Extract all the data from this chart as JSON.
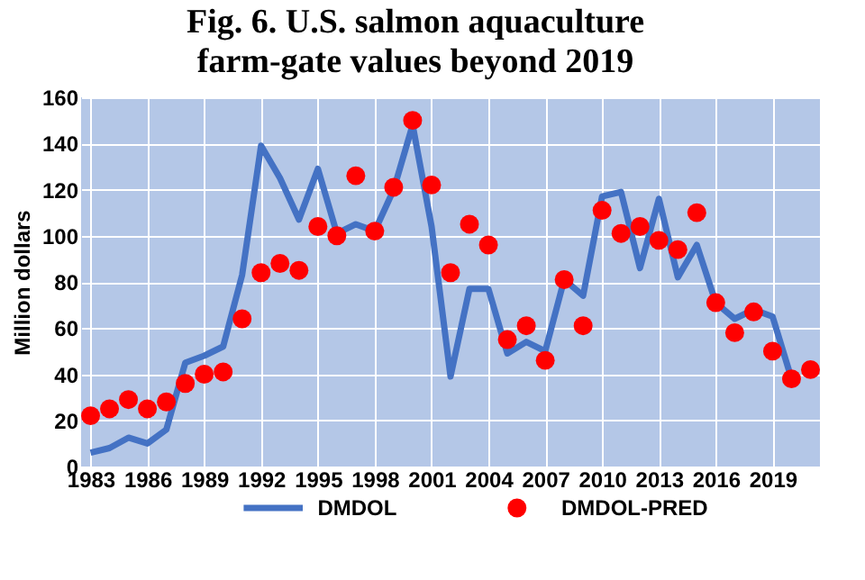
{
  "chart_data": {
    "type": "line",
    "title": "Fig. 6. U.S. salmon aquaculture farm-gate values beyond 2019",
    "ylabel": "Million dollars",
    "categories": [
      "1983",
      null,
      null,
      "1986",
      null,
      null,
      "1989",
      null,
      null,
      "1992",
      null,
      null,
      "1995",
      null,
      null,
      "1998",
      null,
      null,
      "2001",
      null,
      null,
      "2004",
      null,
      null,
      "2007",
      null,
      null,
      "2010",
      null,
      null,
      "2013",
      null,
      null,
      "2016",
      null,
      null,
      "2019",
      null,
      null
    ],
    "series": [
      {
        "name": "DMDOL",
        "type": "line",
        "color": "#4472c4",
        "values": [
          6,
          8,
          12.5,
          10,
          16,
          45,
          48,
          52,
          83,
          139,
          125,
          107,
          129,
          101,
          105,
          102,
          120,
          148,
          104,
          39,
          77,
          77,
          49,
          54,
          50,
          81,
          74,
          117,
          119,
          86,
          116,
          82,
          96,
          71,
          64,
          68,
          65,
          38,
          null
        ]
      },
      {
        "name": "DMDOL-PRED",
        "type": "scatter",
        "marker": "circle",
        "color": "#ff0000",
        "values": [
          22,
          25,
          29,
          25,
          28,
          36,
          40,
          41,
          64,
          84,
          88,
          85,
          104,
          100,
          126,
          102,
          121,
          150,
          122,
          84,
          105,
          96,
          55,
          61,
          46,
          81,
          61,
          111,
          101,
          104,
          98,
          94,
          110,
          71,
          58,
          67,
          50,
          38,
          42
        ]
      }
    ],
    "ylim": [
      0,
      160
    ],
    "yticks": [
      0,
      20,
      40,
      60,
      80,
      100,
      120,
      140,
      160
    ],
    "grid": true,
    "legend": "bottom"
  }
}
